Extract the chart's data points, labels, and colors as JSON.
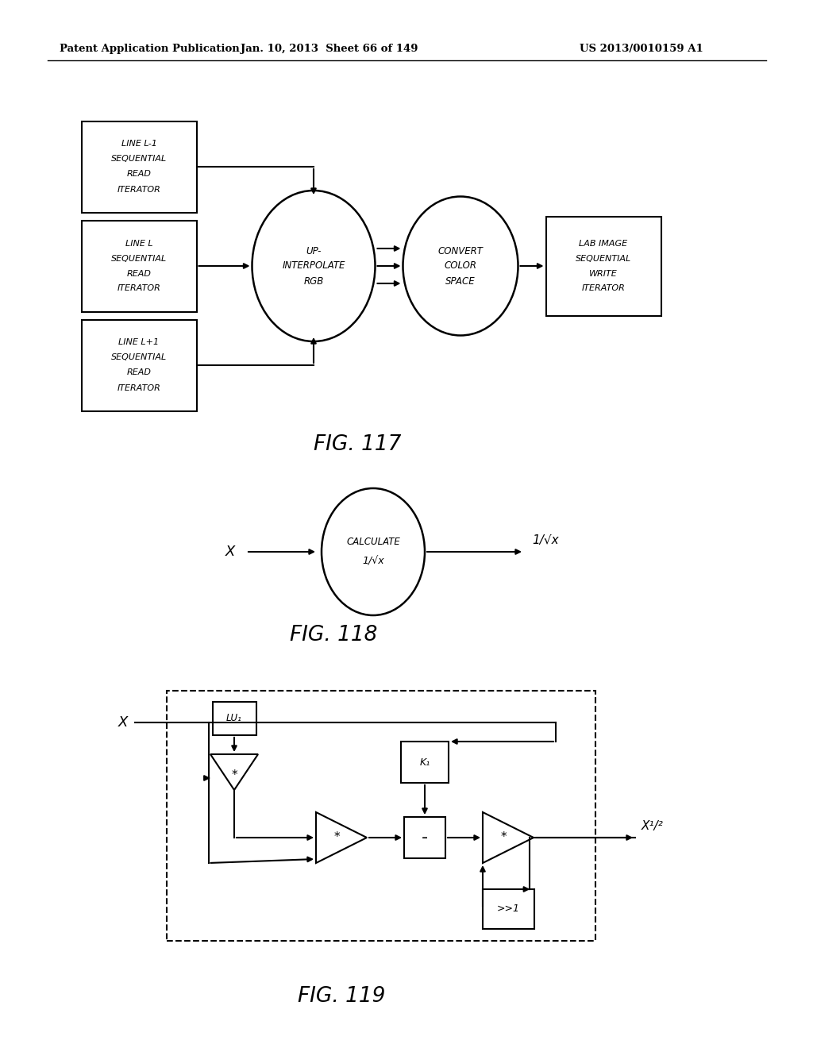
{
  "header_left": "Patent Application Publication",
  "header_mid": "Jan. 10, 2013  Sheet 66 of 149",
  "header_right": "US 2013/0010159 A1",
  "fig117_caption": "FIG. 117",
  "fig118_caption": "FIG. 118",
  "fig119_caption": "FIG. 119",
  "background_color": "#ffffff",
  "line_color": "#000000",
  "box_fill": "#ffffff"
}
